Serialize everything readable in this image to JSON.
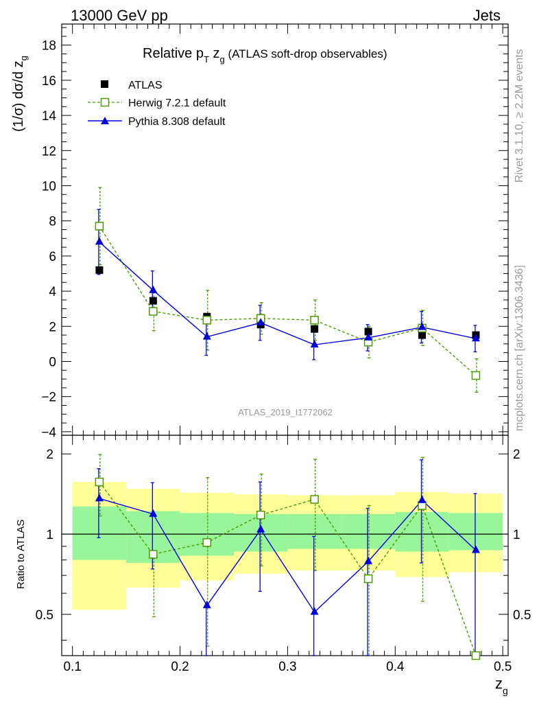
{
  "header": {
    "left": "13000 GeV pp",
    "right": "Jets"
  },
  "side": {
    "rivet": "Rivet 3.1.10, ≥ 2.2M events",
    "mcplots": "mcplots.cern.ch [arXiv:1306.3436]"
  },
  "watermark": "ATLAS_2019_I1772062",
  "title": {
    "main": "Relative p",
    "sub_t": "T",
    "z": " z",
    "sub_g": "g",
    "rest": " (ATLAS soft-drop observables)"
  },
  "ylabel": {
    "prefix": "(1/σ) dσ/d z",
    "sub": "g"
  },
  "xlabel": {
    "main": "z",
    "sub": "g"
  },
  "ratio_ylabel": "Ratio to ATLAS",
  "legend": {
    "data": "ATLAS",
    "herwig": "Herwig 7.2.1 default",
    "pythia": "Pythia 8.308 default"
  },
  "colors": {
    "herwig": "#4a9a00",
    "pythia": "#0000dd",
    "data": "#000000",
    "band_inner": "#99f599",
    "band_outer": "#ffff99"
  },
  "chart_data": [
    {
      "type": "scatter",
      "title": "Relative pT zg (ATLAS soft-drop observables)",
      "xlabel": "zg",
      "ylabel": "(1/σ) dσ/d zg",
      "xlim": [
        0.09,
        0.505
      ],
      "ylim": [
        -4.2,
        19.2
      ],
      "x_ticks": [
        "0.1",
        "0.2",
        "0.3",
        "0.4",
        "0.5"
      ],
      "y_ticks": [
        "−4",
        "−2",
        "0",
        "2",
        "4",
        "6",
        "8",
        "10",
        "12",
        "14",
        "16",
        "18"
      ],
      "legend_position": "top-left",
      "x": [
        0.125,
        0.175,
        0.225,
        0.275,
        0.325,
        0.375,
        0.425,
        0.475
      ],
      "series": [
        {
          "name": "ATLAS",
          "marker": "filled-square",
          "values": [
            5.2,
            3.45,
            2.55,
            2.1,
            1.85,
            1.7,
            1.5,
            1.5
          ]
        },
        {
          "name": "Herwig 7.2.1 default",
          "marker": "open-square",
          "line": "dashed",
          "values": [
            7.7,
            2.85,
            2.35,
            2.45,
            2.35,
            1.1,
            1.9,
            -0.8
          ],
          "errors": [
            2.2,
            1.1,
            1.7,
            0.9,
            1.15,
            0.9,
            1.0,
            0.95
          ]
        },
        {
          "name": "Pythia 8.308 default",
          "marker": "triangle",
          "line": "solid",
          "values": [
            6.8,
            4.05,
            1.4,
            2.2,
            0.95,
            1.35,
            1.95,
            1.3
          ],
          "errors": [
            1.85,
            1.1,
            1.05,
            1.0,
            0.85,
            0.75,
            0.9,
            0.75
          ]
        }
      ]
    },
    {
      "type": "scatter",
      "ylabel": "Ratio to ATLAS",
      "ylim": [
        0.35,
        2.35
      ],
      "y_ticks": [
        "0.5",
        "1",
        "2"
      ],
      "x": [
        0.125,
        0.175,
        0.225,
        0.275,
        0.325,
        0.375,
        0.425,
        0.475
      ],
      "bands": {
        "edges": [
          0.1,
          0.15,
          0.2,
          0.25,
          0.3,
          0.35,
          0.4,
          0.45,
          0.5
        ],
        "inner_lo": [
          0.8,
          0.78,
          0.83,
          0.86,
          0.88,
          0.88,
          0.86,
          0.87
        ],
        "inner_hi": [
          1.27,
          1.22,
          1.2,
          1.19,
          1.19,
          1.19,
          1.21,
          1.2
        ],
        "outer_lo": [
          0.52,
          0.63,
          0.67,
          0.71,
          0.73,
          0.73,
          0.69,
          0.72
        ],
        "outer_hi": [
          1.57,
          1.48,
          1.43,
          1.41,
          1.4,
          1.4,
          1.44,
          1.42
        ]
      },
      "series": [
        {
          "name": "Herwig 7.2.1 default",
          "values": [
            1.57,
            0.84,
            0.93,
            1.18,
            1.35,
            0.68,
            1.28,
            0.35
          ],
          "err_lo": [
            0.4,
            0.35,
            0.55,
            0.42,
            0.62,
            0.45,
            0.72,
            0.3
          ],
          "err_hi": [
            0.42,
            0.0,
            0.7,
            0.5,
            0.56,
            0.6,
            0.66,
            0.0
          ]
        },
        {
          "name": "Pythia 8.308 default",
          "values": [
            1.36,
            1.19,
            0.54,
            1.04,
            0.51,
            0.79,
            1.34,
            0.87
          ],
          "err_lo": [
            0.39,
            0.45,
            0.4,
            0.43,
            0.42,
            0.6,
            0.56,
            0.87
          ],
          "err_hi": [
            0.4,
            0.37,
            0.0,
            0.53,
            0.47,
            0.46,
            0.56,
            0.55
          ]
        }
      ]
    }
  ]
}
